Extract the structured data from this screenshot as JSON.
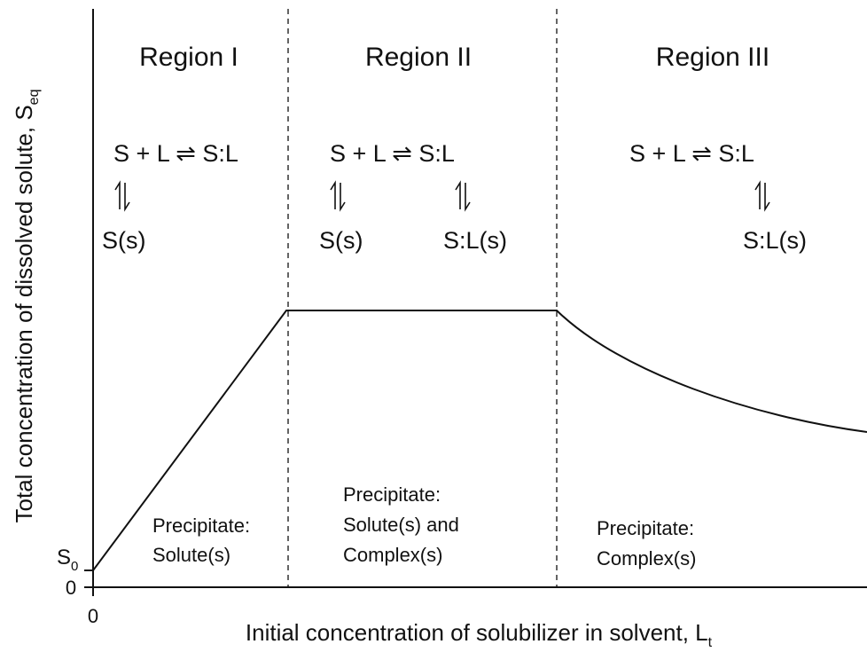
{
  "axes": {
    "y_label": "Total concentration of dissolved solute,",
    "y_symbol": "S",
    "y_sub": "eq",
    "x_label": "Initial concentration of solubilizer in solvent,",
    "x_symbol": "L",
    "x_sub": "t",
    "x_origin": "0",
    "y_origin": "0",
    "s0_symbol": "S",
    "s0_sub": "0"
  },
  "regions": [
    {
      "title": "Region I",
      "equilibrium": "S + L ⇌ S:L",
      "species": [
        "S(s)"
      ],
      "precipitate": [
        "Precipitate:",
        "Solute(s)"
      ]
    },
    {
      "title": "Region II",
      "equilibrium": "S + L ⇌ S:L",
      "species": [
        "S(s)",
        "S:L(s)"
      ],
      "precipitate": [
        "Precipitate:",
        "Solute(s) and",
        "Complex(s)"
      ]
    },
    {
      "title": "Region III",
      "equilibrium": "S + L ⇌ S:L",
      "species": [
        "S:L(s)"
      ],
      "precipitate": [
        "Precipitate:",
        "Complex(s)"
      ]
    }
  ]
}
